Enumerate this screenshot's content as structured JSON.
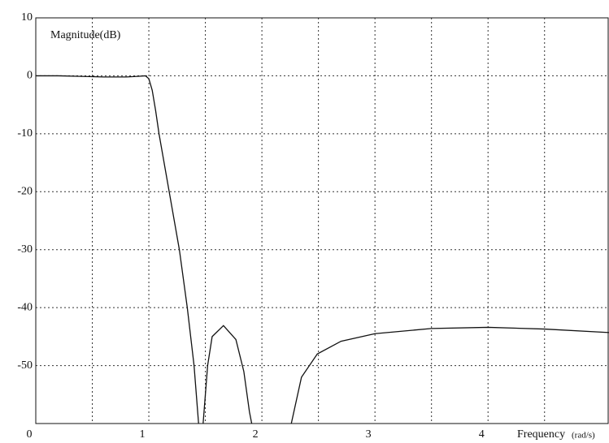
{
  "chart_data": {
    "type": "line",
    "y_label": "Magnitude(dB)",
    "x_label": "Frequency",
    "x_unit": "(rad/s)",
    "xlim": [
      0,
      5.07
    ],
    "ylim": [
      -60,
      10
    ],
    "xticks": [
      0,
      1,
      2,
      3,
      4
    ],
    "x_minor_ticks": [
      0.5,
      1.5,
      2.5,
      3.5,
      4.5
    ],
    "yticks": [
      10,
      0,
      -10,
      -20,
      -30,
      -40,
      -50
    ],
    "grid": true,
    "color": "#111111",
    "x": [
      0,
      0.2,
      0.4,
      0.6,
      0.8,
      0.9,
      0.97,
      1.0,
      1.03,
      1.06,
      1.09,
      1.18,
      1.27,
      1.34,
      1.4,
      1.44,
      null,
      1.48,
      1.52,
      1.56,
      1.66,
      1.77,
      1.84,
      1.89,
      1.91,
      null,
      2.26,
      2.35,
      2.49,
      2.7,
      3.0,
      3.5,
      4.0,
      4.5,
      5.07
    ],
    "values": [
      0,
      0,
      -0.1,
      -0.2,
      -0.2,
      -0.1,
      0,
      -0.5,
      -2.5,
      -6,
      -10,
      -20,
      -30,
      -40,
      -50,
      -60,
      null,
      -60,
      -50,
      -45,
      -43.1,
      -45.5,
      -51,
      -58,
      -60,
      null,
      -60,
      -52,
      -48,
      -45.8,
      -44.5,
      -43.6,
      -43.4,
      -43.7,
      -44.3
    ]
  }
}
